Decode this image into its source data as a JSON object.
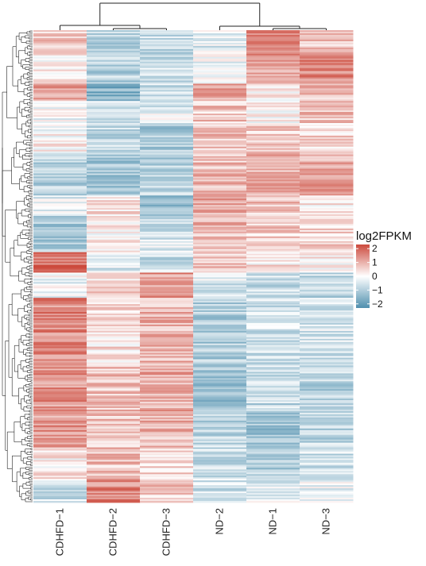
{
  "chart_data": {
    "type": "heatmap",
    "columns": [
      "CDHFD−1",
      "CDHFD−2",
      "CDHFD−3",
      "ND−2",
      "ND−1",
      "ND−3"
    ],
    "row_count": 300,
    "row_dendrogram": true,
    "column_dendrogram": true,
    "legend": {
      "title": "log2FPKM",
      "ticks": [
        "2",
        "1",
        "0",
        "−1",
        "−2"
      ],
      "tick_values": [
        2,
        1,
        0,
        -1,
        -2
      ],
      "range": [
        -2.3,
        2.3
      ],
      "placement": "right"
    },
    "color_scale": {
      "low": "#4f8fae",
      "mid": "#ffffff",
      "high": "#cc4a3d"
    },
    "row_blocks": [
      {
        "frac": 0.045,
        "means": [
          0.6,
          -0.9,
          -0.7,
          -0.4,
          1.6,
          0.8
        ]
      },
      {
        "frac": 0.065,
        "means": [
          0.3,
          -0.9,
          -0.7,
          -0.1,
          1.2,
          1.4
        ]
      },
      {
        "frac": 0.035,
        "means": [
          1.1,
          -1.6,
          -0.7,
          1.0,
          0.3,
          0.8
        ]
      },
      {
        "frac": 0.045,
        "means": [
          -0.2,
          -0.6,
          -0.4,
          0.7,
          0.2,
          0.8
        ]
      },
      {
        "frac": 0.06,
        "means": [
          0.1,
          -0.8,
          -1.1,
          0.8,
          0.7,
          0.5
        ]
      },
      {
        "frac": 0.085,
        "means": [
          -0.9,
          -1.1,
          -0.9,
          0.8,
          0.9,
          1.1
        ]
      },
      {
        "frac": 0.04,
        "means": [
          -0.4,
          0.5,
          -1.5,
          1.2,
          0.8,
          0.2
        ]
      },
      {
        "frac": 0.075,
        "means": [
          -1.1,
          0.2,
          -0.5,
          0.9,
          0.7,
          0.6
        ]
      },
      {
        "frac": 0.04,
        "means": [
          1.8,
          -0.5,
          -0.7,
          0.8,
          0.3,
          0.2
        ]
      },
      {
        "frac": 0.05,
        "means": [
          -0.2,
          0.5,
          1.3,
          -0.5,
          -0.7,
          -0.8
        ]
      },
      {
        "frac": 0.14,
        "means": [
          1.5,
          0.4,
          0.9,
          -1.0,
          -0.6,
          -0.5
        ]
      },
      {
        "frac": 0.09,
        "means": [
          1.3,
          0.8,
          1.0,
          -1.2,
          -0.8,
          -0.9
        ]
      },
      {
        "frac": 0.075,
        "means": [
          1.3,
          0.8,
          0.9,
          -0.8,
          -1.3,
          -0.8
        ]
      },
      {
        "frac": 0.065,
        "means": [
          0.2,
          0.8,
          0.5,
          -0.7,
          -1.0,
          -0.6
        ]
      },
      {
        "frac": 0.05,
        "means": [
          -0.6,
          1.5,
          0.7,
          -0.6,
          -0.4,
          -0.2
        ]
      }
    ]
  }
}
